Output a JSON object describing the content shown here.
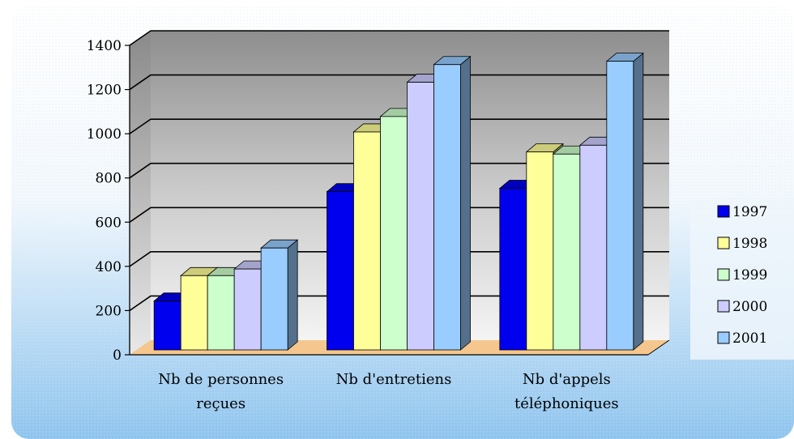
{
  "chart_data": {
    "type": "bar",
    "title": "",
    "xlabel": "",
    "ylabel": "",
    "ylim": [
      0,
      1400
    ],
    "y_ticks": [
      0,
      200,
      400,
      600,
      800,
      1000,
      1200,
      1400
    ],
    "grid": true,
    "legend_position": "right",
    "three_d": true,
    "categories": [
      [
        "Nb de personnes",
        "reçues"
      ],
      [
        "Nb d'entretiens"
      ],
      [
        "Nb d'appels",
        "téléphoniques"
      ]
    ],
    "series": [
      {
        "name": "1997",
        "color": "#0000ee",
        "values": [
          265,
          760,
          775
        ]
      },
      {
        "name": "1998",
        "color": "#ffff99",
        "values": [
          380,
          1030,
          940
        ]
      },
      {
        "name": "1999",
        "color": "#ccffcc",
        "values": [
          380,
          1100,
          930
        ]
      },
      {
        "name": "2000",
        "color": "#ccccff",
        "values": [
          410,
          1255,
          970
        ]
      },
      {
        "name": "2001",
        "color": "#99ccff",
        "values": [
          505,
          1335,
          1350
        ]
      }
    ],
    "colors": {
      "wall": "#c8c8c8",
      "side_wall": "#a8a8a8",
      "floor": "#f5c78e",
      "background_light": "#ffffff",
      "background_blue": "#8ec4ee"
    }
  }
}
